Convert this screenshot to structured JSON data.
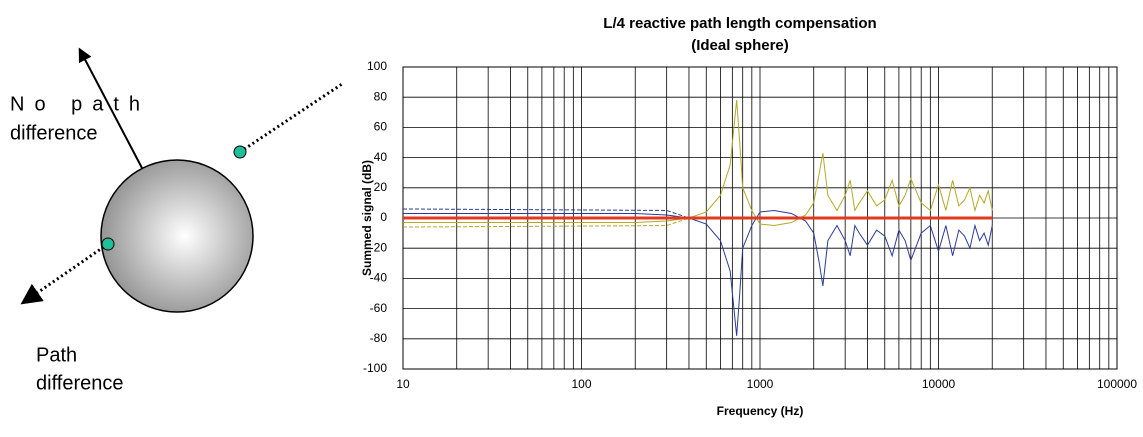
{
  "diagram": {
    "top_label": [
      "No path",
      "difference"
    ],
    "bottom_label": [
      "Path",
      "difference"
    ]
  },
  "chart_data": {
    "type": "line",
    "title": "L/4 reactive path length compensation",
    "subtitle": "(Ideal sphere)",
    "x_label": "Frequency (Hz)",
    "y_label": "Summed signal (dB)",
    "log_x": true,
    "grid": true,
    "xlim": [
      10,
      100000
    ],
    "xticks": [
      10,
      100,
      1000,
      10000,
      100000
    ],
    "xminor_ticks": [
      20,
      30,
      40,
      50,
      60,
      70,
      80,
      90,
      200,
      300,
      400,
      500,
      600,
      700,
      800,
      900,
      2000,
      3000,
      4000,
      5000,
      6000,
      7000,
      8000,
      9000,
      20000,
      30000,
      40000,
      50000,
      60000,
      70000,
      80000,
      90000
    ],
    "ylim": [
      -100,
      100
    ],
    "yticks": [
      -100,
      -80,
      -60,
      -40,
      -20,
      0,
      20,
      40,
      60,
      80,
      100
    ],
    "x": [
      10,
      50,
      200,
      300,
      400,
      500,
      600,
      680,
      740,
      770,
      800,
      900,
      1000,
      1200,
      1500,
      1800,
      2000,
      2150,
      2250,
      2400,
      2700,
      3000,
      3200,
      3400,
      3600,
      4000,
      4500,
      5000,
      5500,
      6000,
      6500,
      7000,
      8000,
      9000,
      10000,
      11000,
      12000,
      13000,
      14000,
      15000,
      16000,
      17000,
      18000,
      19000,
      20000
    ],
    "series": [
      {
        "color": "#2b3a9a",
        "width": 1,
        "values": [
          3,
          3,
          3,
          2,
          0,
          -4,
          -15,
          -35,
          -78,
          -50,
          -20,
          -5,
          4,
          5,
          3,
          -2,
          -10,
          -30,
          -45,
          -15,
          -5,
          -15,
          -25,
          -5,
          -10,
          -18,
          -8,
          -12,
          -25,
          -8,
          -15,
          -28,
          -10,
          -5,
          -22,
          -5,
          -25,
          -8,
          -12,
          -20,
          -5,
          -15,
          -10,
          -18,
          -5
        ]
      },
      {
        "color": "#b5a828",
        "width": 1,
        "values": [
          -3,
          -3,
          -3,
          -2,
          0,
          4,
          15,
          35,
          78,
          50,
          20,
          5,
          -4,
          -5,
          -3,
          2,
          10,
          30,
          43,
          15,
          5,
          15,
          25,
          5,
          10,
          18,
          8,
          12,
          25,
          8,
          15,
          26,
          10,
          5,
          22,
          5,
          25,
          8,
          12,
          20,
          5,
          15,
          10,
          18,
          5
        ]
      },
      {
        "color": "#2b3a9a",
        "width": 1,
        "dash": true,
        "x": [
          10,
          300,
          400
        ],
        "values": [
          6,
          5,
          0
        ]
      },
      {
        "color": "#b5a828",
        "width": 1,
        "dash": true,
        "x": [
          10,
          300,
          400
        ],
        "values": [
          -6,
          -5,
          0
        ]
      },
      {
        "color": "#e03a1e",
        "width": 3,
        "x": [
          10,
          20000
        ],
        "values": [
          0,
          0
        ]
      }
    ]
  }
}
